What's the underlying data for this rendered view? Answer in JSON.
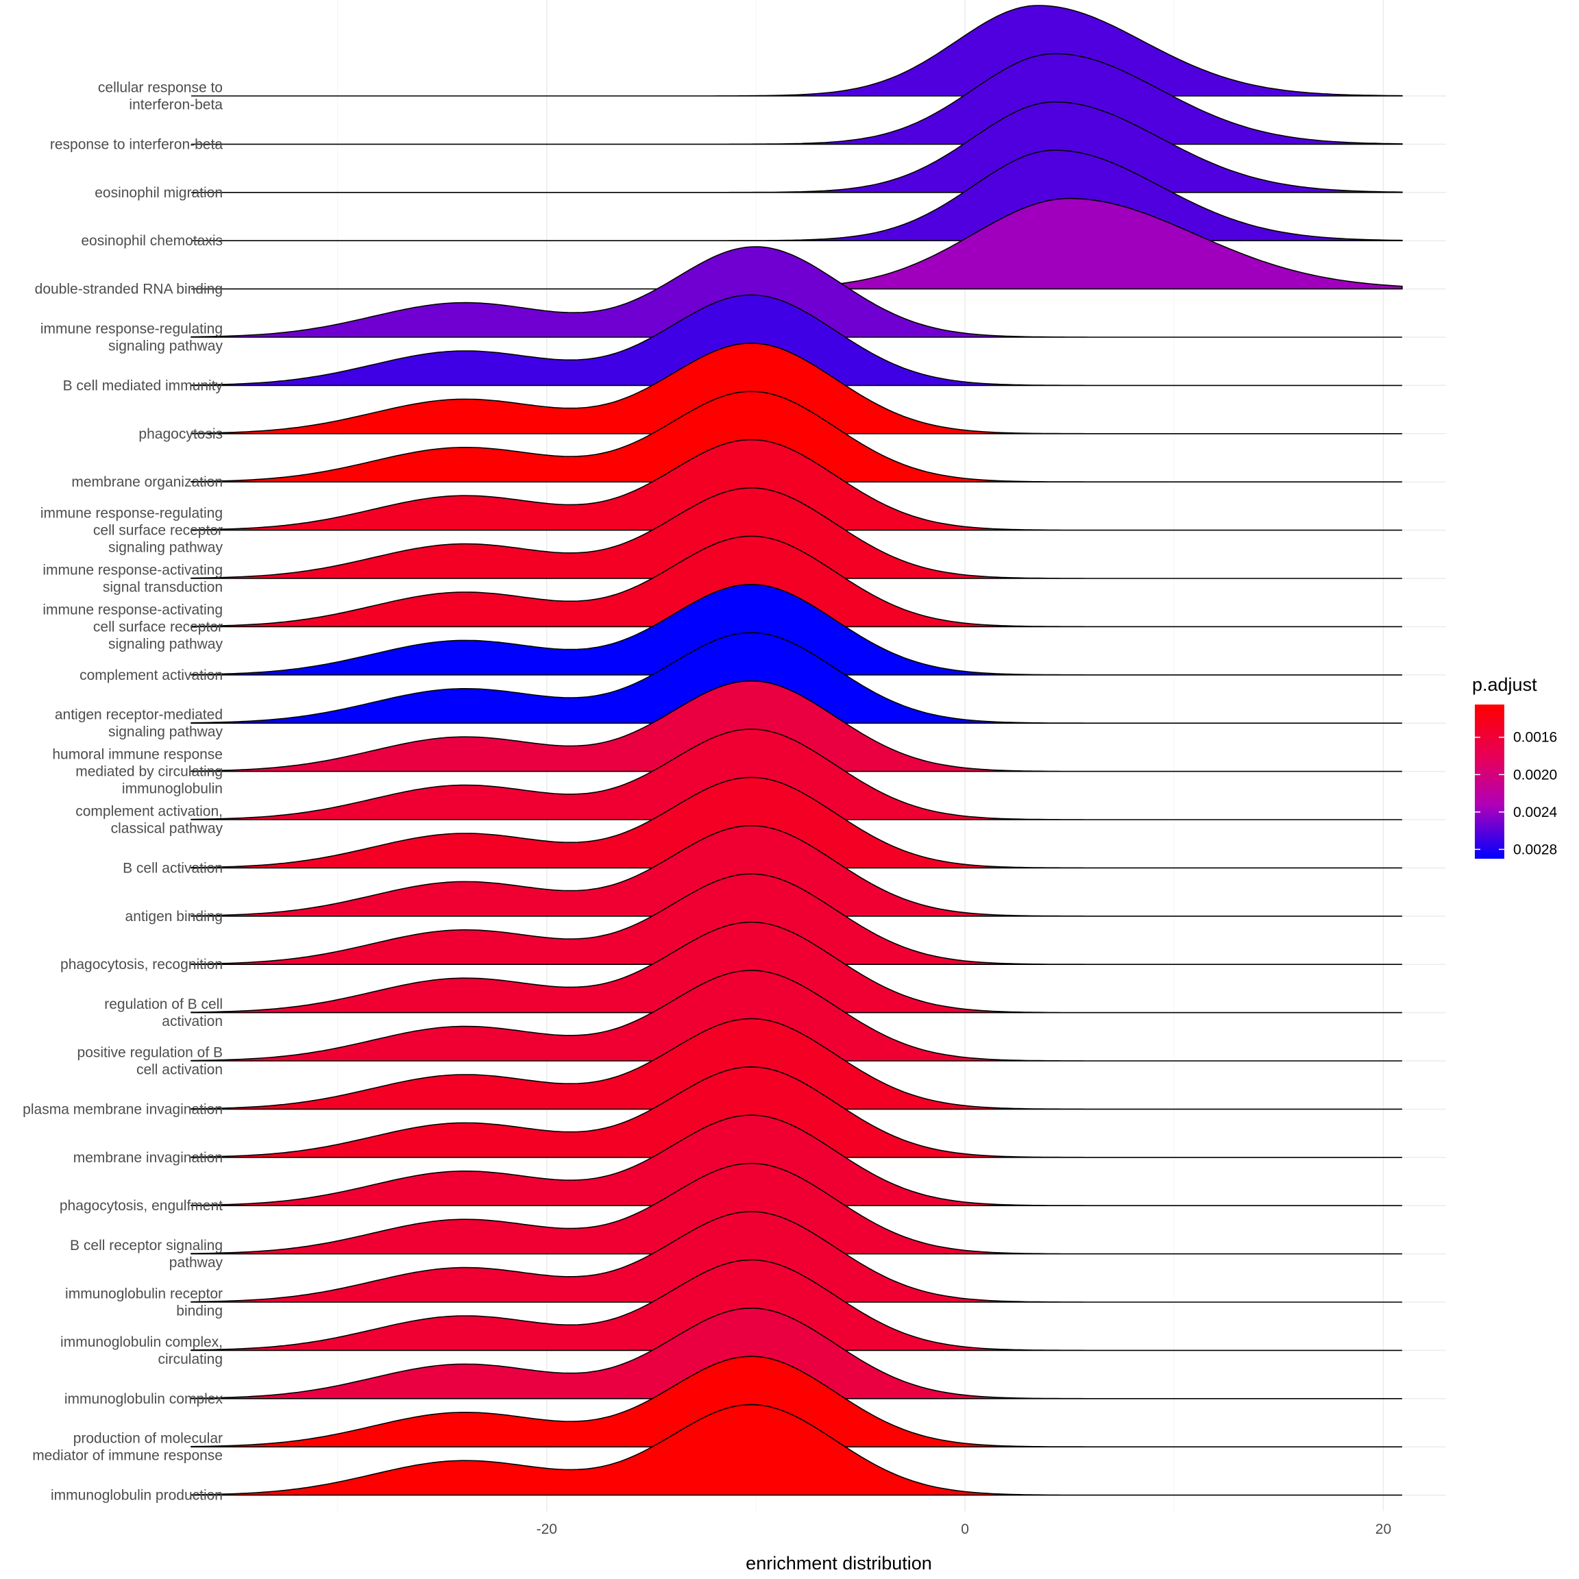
{
  "chart_data": {
    "type": "ridgeline",
    "xlabel": "enrichment distribution",
    "ylabel": "",
    "xlim": [
      -35,
      23
    ],
    "x_ticks": [
      -20,
      0,
      20
    ],
    "x_tick_labels": [
      "-20",
      "0",
      "20"
    ],
    "grid": true,
    "legend": {
      "title": "p.adjust",
      "position": "right",
      "range": [
        0.00125,
        0.0029
      ],
      "ticks": [
        0.0016,
        0.002,
        0.0024,
        0.0028
      ],
      "tick_labels": [
        "0.0016",
        "0.0020",
        "0.0024",
        "0.0028"
      ],
      "low_color": "#ff0000",
      "high_color": "#0000ff"
    },
    "series": [
      {
        "label": "cellular response to\ninterferon-beta",
        "p_adjust": 0.00265,
        "mode_x": 3.5,
        "shape": "unimodal_right"
      },
      {
        "label": "response to interferon-beta",
        "p_adjust": 0.00265,
        "mode_x": 4.3,
        "shape": "unimodal_right"
      },
      {
        "label": "eosinophil migration",
        "p_adjust": 0.00265,
        "mode_x": 4.3,
        "shape": "unimodal_right"
      },
      {
        "label": "eosinophil chemotaxis",
        "p_adjust": 0.00265,
        "mode_x": 4.3,
        "shape": "unimodal_right"
      },
      {
        "label": "double-stranded RNA binding",
        "p_adjust": 0.0024,
        "mode_x": 5.0,
        "shape": "unimodal_wide"
      },
      {
        "label": "immune response-regulating\nsignaling pathway",
        "p_adjust": 0.00255,
        "mode_x": -10.0,
        "shape": "bimodal"
      },
      {
        "label": "B cell mediated immunity",
        "p_adjust": 0.0027,
        "mode_x": -10.2,
        "shape": "bimodal"
      },
      {
        "label": "phagocytosis",
        "p_adjust": 0.00125,
        "mode_x": -10.2,
        "shape": "bimodal"
      },
      {
        "label": "membrane organization",
        "p_adjust": 0.00125,
        "mode_x": -10.2,
        "shape": "bimodal"
      },
      {
        "label": "immune response-regulating\ncell surface receptor\nsignaling pathway",
        "p_adjust": 0.0015,
        "mode_x": -10.2,
        "shape": "bimodal"
      },
      {
        "label": "immune response-activating\nsignal transduction",
        "p_adjust": 0.0015,
        "mode_x": -10.2,
        "shape": "bimodal"
      },
      {
        "label": "immune response-activating\ncell surface receptor\nsignaling pathway",
        "p_adjust": 0.0015,
        "mode_x": -10.2,
        "shape": "bimodal"
      },
      {
        "label": "complement activation",
        "p_adjust": 0.0029,
        "mode_x": -10.2,
        "shape": "bimodal"
      },
      {
        "label": "antigen receptor-mediated\nsignaling pathway",
        "p_adjust": 0.0029,
        "mode_x": -10.2,
        "shape": "bimodal"
      },
      {
        "label": "humoral immune response\nmediated by circulating\nimmunoglobulin",
        "p_adjust": 0.0017,
        "mode_x": -10.2,
        "shape": "bimodal"
      },
      {
        "label": "complement activation,\nclassical pathway",
        "p_adjust": 0.0016,
        "mode_x": -10.2,
        "shape": "bimodal"
      },
      {
        "label": "B cell activation",
        "p_adjust": 0.0015,
        "mode_x": -10.2,
        "shape": "bimodal"
      },
      {
        "label": "antigen binding",
        "p_adjust": 0.0016,
        "mode_x": -10.2,
        "shape": "bimodal"
      },
      {
        "label": "phagocytosis, recognition",
        "p_adjust": 0.0016,
        "mode_x": -10.2,
        "shape": "bimodal"
      },
      {
        "label": "regulation of B cell\nactivation",
        "p_adjust": 0.0016,
        "mode_x": -10.2,
        "shape": "bimodal"
      },
      {
        "label": "positive regulation of B\ncell activation",
        "p_adjust": 0.0016,
        "mode_x": -10.2,
        "shape": "bimodal"
      },
      {
        "label": "plasma membrane invagination",
        "p_adjust": 0.0015,
        "mode_x": -10.2,
        "shape": "bimodal"
      },
      {
        "label": "membrane invagination",
        "p_adjust": 0.0015,
        "mode_x": -10.2,
        "shape": "bimodal"
      },
      {
        "label": "phagocytosis, engulfment",
        "p_adjust": 0.0016,
        "mode_x": -10.2,
        "shape": "bimodal"
      },
      {
        "label": "B cell receptor signaling\npathway",
        "p_adjust": 0.0016,
        "mode_x": -10.2,
        "shape": "bimodal"
      },
      {
        "label": "immunoglobulin receptor\nbinding",
        "p_adjust": 0.0016,
        "mode_x": -10.2,
        "shape": "bimodal"
      },
      {
        "label": "immunoglobulin complex,\ncirculating",
        "p_adjust": 0.0016,
        "mode_x": -10.2,
        "shape": "bimodal"
      },
      {
        "label": "immunoglobulin complex",
        "p_adjust": 0.0017,
        "mode_x": -10.2,
        "shape": "bimodal"
      },
      {
        "label": "production of molecular\nmediator of immune response",
        "p_adjust": 0.00125,
        "mode_x": -10.2,
        "shape": "bimodal"
      },
      {
        "label": "immunoglobulin production",
        "p_adjust": 0.00125,
        "mode_x": -10.2,
        "shape": "bimodal"
      }
    ]
  }
}
